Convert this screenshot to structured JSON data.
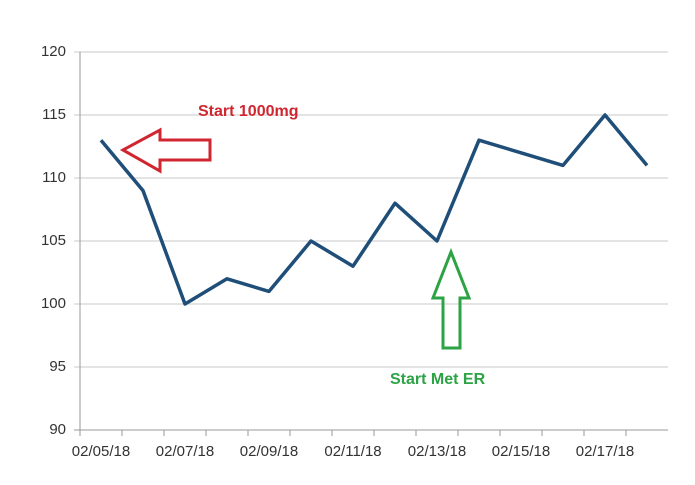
{
  "chart_data": {
    "type": "line",
    "categories": [
      "02/05/18",
      null,
      "02/07/18",
      null,
      "02/09/18",
      null,
      "02/11/18",
      null,
      "02/13/18",
      null,
      "02/15/18",
      null,
      "02/17/18",
      null
    ],
    "series": [
      {
        "name": null,
        "color": "#1f4e79",
        "values": [
          113,
          109,
          100,
          102,
          101,
          105,
          103,
          108,
          105,
          113,
          112,
          111,
          115,
          111
        ]
      }
    ],
    "ylim": [
      90,
      120
    ],
    "yticks": [
      90,
      95,
      100,
      105,
      110,
      115,
      120
    ],
    "grid": true,
    "annotations": [
      {
        "text": "Start 1000mg",
        "color": "#d0262f"
      },
      {
        "text": "Start Met ER",
        "color": "#2ca344"
      }
    ]
  }
}
